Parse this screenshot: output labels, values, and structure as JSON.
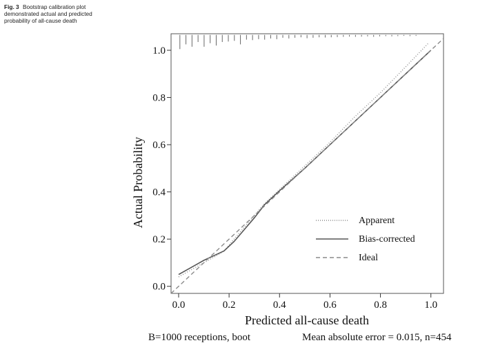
{
  "caption": {
    "lead": "Fig. 3",
    "text": "Bootstrap calibration plot demonstrated actual and predicted probability of all-cause death"
  },
  "footer": {
    "left": "B=1000 receptions, boot",
    "right": "Mean absolute error = 0.015, n=454"
  },
  "chart_data": {
    "type": "line",
    "title": "",
    "xlabel": "Predicted all-cause death",
    "ylabel": "Actual Probability",
    "xlim": [
      -0.03,
      1.05
    ],
    "ylim": [
      -0.03,
      1.07
    ],
    "x_ticks": [
      "0.0",
      "0.2",
      "0.4",
      "0.6",
      "0.8",
      "1.0"
    ],
    "y_ticks": [
      "0.0",
      "0.2",
      "0.4",
      "0.6",
      "0.8",
      "1.0"
    ],
    "grid": false,
    "legend_position": "bottom-right",
    "series": [
      {
        "name": "Apparent",
        "style": "dotted",
        "color": "#8a8a8a",
        "x": [
          0.0,
          0.05,
          0.1,
          0.15,
          0.18,
          0.22,
          0.26,
          0.3,
          0.34,
          0.4,
          0.5,
          0.6,
          0.7,
          0.8,
          0.9,
          0.99
        ],
        "y": [
          0.04,
          0.07,
          0.1,
          0.13,
          0.15,
          0.2,
          0.25,
          0.3,
          0.35,
          0.41,
          0.51,
          0.61,
          0.72,
          0.82,
          0.93,
          1.03
        ]
      },
      {
        "name": "Bias-corrected",
        "style": "solid",
        "color": "#555555",
        "x": [
          0.0,
          0.05,
          0.1,
          0.15,
          0.18,
          0.22,
          0.26,
          0.3,
          0.34,
          0.4,
          0.5,
          0.6,
          0.7,
          0.8,
          0.9,
          1.0
        ],
        "y": [
          0.05,
          0.08,
          0.11,
          0.135,
          0.15,
          0.19,
          0.24,
          0.29,
          0.345,
          0.405,
          0.5,
          0.6,
          0.7,
          0.8,
          0.9,
          1.0
        ]
      },
      {
        "name": "Ideal",
        "style": "dashed",
        "color": "#8a8a8a",
        "x": [
          -0.03,
          1.05
        ],
        "y": [
          -0.03,
          1.05
        ]
      }
    ],
    "rug": {
      "top": 1.065,
      "heights": [
        0.06,
        0.04,
        0.05,
        0.03,
        0.05,
        0.035,
        0.045,
        0.03,
        0.028,
        0.025,
        0.04,
        0.02,
        0.022,
        0.018,
        0.02,
        0.015,
        0.018,
        0.012,
        0.015,
        0.012,
        0.01,
        0.014,
        0.012,
        0.01,
        0.011,
        0.01,
        0.009,
        0.008,
        0.007,
        0.008,
        0.007,
        0.006,
        0.008,
        0.006,
        0.005,
        0.006,
        0.005,
        0.004,
        0.005,
        0.004
      ],
      "x_start": 0.005,
      "x_step": 0.024
    },
    "colors": {
      "axis": "#333333",
      "apparent": "#8a8a8a",
      "bias_corrected": "#555555",
      "ideal": "#8a8a8a",
      "rug": "#666666"
    }
  }
}
